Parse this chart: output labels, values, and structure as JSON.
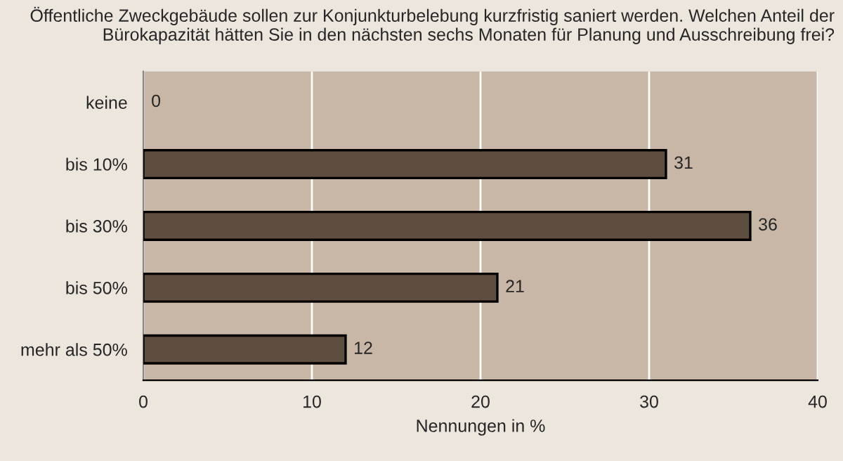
{
  "chart_data": {
    "type": "bar",
    "orientation": "horizontal",
    "title": "Öffentliche Zweckgebäude sollen zur Konjunkturbelebung kurzfristig saniert werden. Welchen Anteil der\nBürokapazität hätten Sie in den nächsten sechs Monaten für Planung und Ausschreibung frei?",
    "categories": [
      "keine",
      "bis 10%",
      "bis 30%",
      "bis 50%",
      "mehr als 50%"
    ],
    "values": [
      0,
      31,
      36,
      21,
      12
    ],
    "color": "#5e4e40",
    "xlabel": "Nennungen in %",
    "xlim": [
      0,
      40
    ],
    "xticks": [
      0,
      10,
      20,
      30,
      40
    ],
    "grid": "x",
    "data_labels": true
  }
}
